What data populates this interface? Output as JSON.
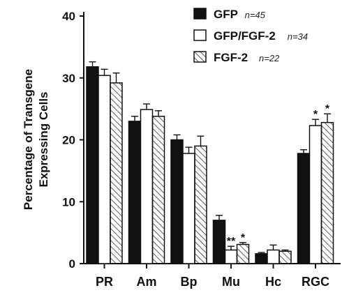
{
  "chart_data": {
    "type": "bar",
    "ylabel": "Percentage of Transgene\nExpressing Cells",
    "ylim": [
      0,
      40
    ],
    "yticks": [
      "0",
      "10",
      "20",
      "30",
      "40"
    ],
    "categories": [
      "PR",
      "Am",
      "Bp",
      "Mu",
      "Hc",
      "RGC"
    ],
    "series": [
      {
        "name": "GFP",
        "n": "n=45",
        "fill": "solid",
        "values": [
          31.8,
          23.0,
          20.0,
          7.0,
          1.6,
          17.8
        ],
        "errors": [
          0.8,
          0.8,
          0.8,
          0.8,
          0.2,
          0.6
        ]
      },
      {
        "name": "GFP/FGF-2",
        "n": "n=34",
        "fill": "open",
        "values": [
          30.4,
          24.9,
          17.8,
          2.2,
          2.2,
          22.3
        ],
        "errors": [
          1.0,
          0.9,
          1.0,
          0.6,
          0.8,
          1.0
        ]
      },
      {
        "name": "FGF-2",
        "n": "n=22",
        "fill": "hatched",
        "values": [
          29.2,
          23.8,
          19.0,
          3.1,
          2.0,
          22.8
        ],
        "errors": [
          1.6,
          0.9,
          1.6,
          0.3,
          0.2,
          1.4
        ]
      }
    ],
    "annotations": [
      {
        "category": "Mu",
        "series": "GFP/FGF-2",
        "text": "**"
      },
      {
        "category": "Mu",
        "series": "FGF-2",
        "text": "*"
      },
      {
        "category": "RGC",
        "series": "GFP/FGF-2",
        "text": "*"
      },
      {
        "category": "RGC",
        "series": "FGF-2",
        "text": "*"
      }
    ],
    "grid": false,
    "legend_position": "top-right"
  },
  "colors": {
    "ink": "#111111",
    "paper": "#ffffff"
  }
}
